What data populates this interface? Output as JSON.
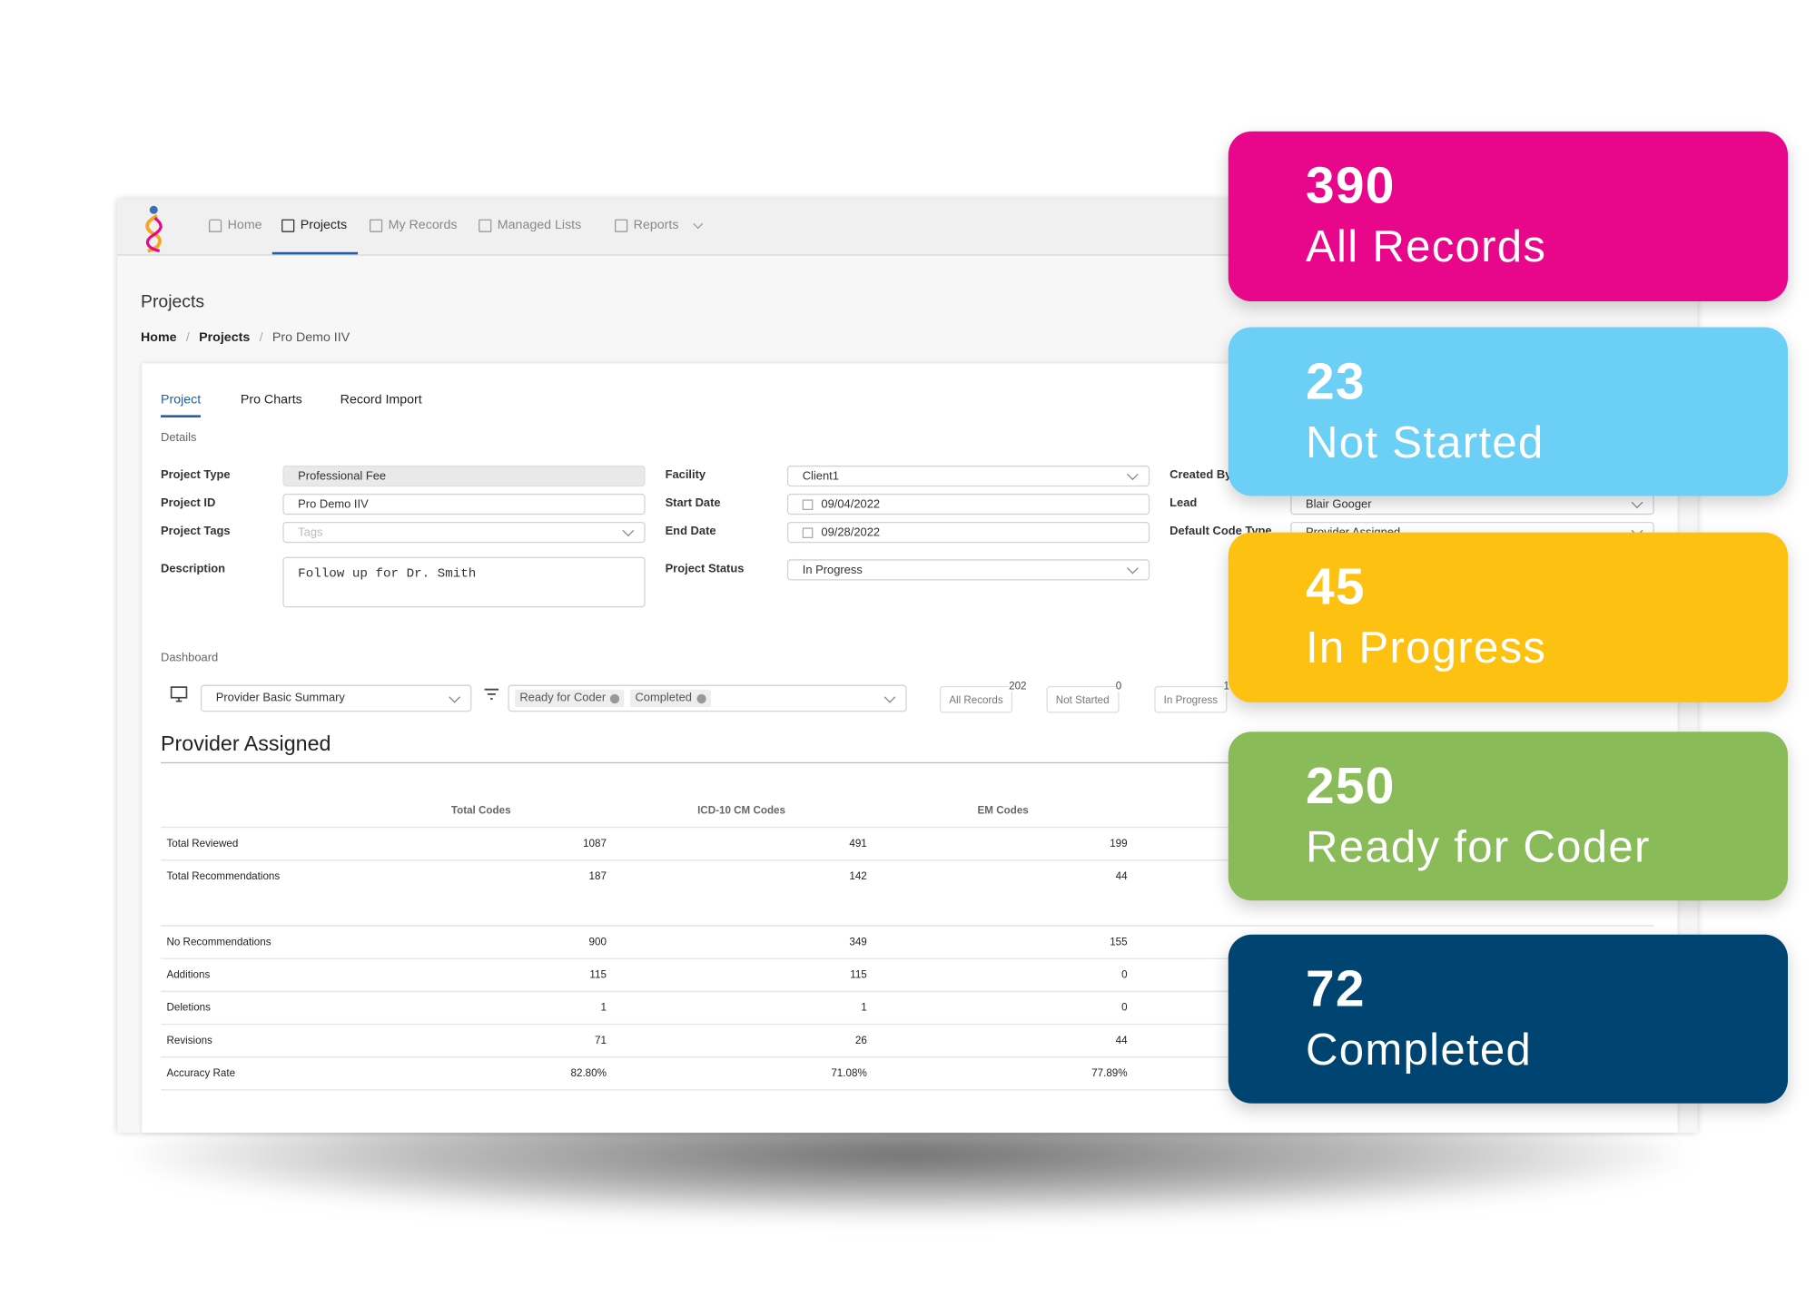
{
  "nav": {
    "items": [
      "Home",
      "Projects",
      "My Records",
      "Managed Lists",
      "Reports"
    ],
    "active": 1
  },
  "page": {
    "title": "Projects",
    "breadcrumb": [
      "Home",
      "Projects",
      "Pro Demo IIV"
    ]
  },
  "tabs": {
    "items": [
      "Project",
      "Pro Charts",
      "Record Import"
    ],
    "active": 0
  },
  "details": {
    "title": "Details",
    "columns": [
      [
        {
          "label": "Project Type",
          "value": "Professional Fee",
          "kind": "readonly"
        },
        {
          "label": "Project ID",
          "value": "Pro Demo IIV",
          "kind": "text"
        },
        {
          "label": "Project Tags",
          "placeholder": "Tags",
          "kind": "select"
        },
        {
          "label": "Description",
          "value": "Follow up for Dr. Smith",
          "kind": "textarea"
        }
      ],
      [
        {
          "label": "Facility",
          "value": "Client1",
          "kind": "select"
        },
        {
          "label": "Start Date",
          "value": "09/04/2022",
          "kind": "date"
        },
        {
          "label": "End Date",
          "value": "09/28/2022",
          "kind": "date"
        },
        {
          "label": "Project Status",
          "value": "In Progress",
          "kind": "select"
        }
      ],
      [
        {
          "label": "Created By",
          "kind": "text"
        },
        {
          "label": "Lead",
          "value": "Blair Googer",
          "kind": "select"
        },
        {
          "label": "Default Code Type",
          "value": "Provider Assigned",
          "kind": "select"
        }
      ]
    ]
  },
  "dashboard": {
    "title": "Dashboard",
    "view": "Provider Basic Summary",
    "filters": [
      "Ready for Coder",
      "Completed"
    ],
    "statuses": [
      {
        "label": "All Records",
        "count": 202
      },
      {
        "label": "Not Started",
        "count": 0
      },
      {
        "label": "In Progress",
        "count": 1
      }
    ]
  },
  "report": {
    "title": "Provider Assigned",
    "columns": [
      "Total Codes",
      "ICD-10 CM Codes",
      "EM Codes"
    ],
    "groups": [
      [
        [
          "Total Reviewed",
          "1087",
          "491",
          "199"
        ],
        [
          "Total Recommendations",
          "187",
          "142",
          "44"
        ]
      ],
      [
        [
          "No Recommendations",
          "900",
          "349",
          "155"
        ],
        [
          "Additions",
          "115",
          "115",
          "0"
        ],
        [
          "Deletions",
          "1",
          "1",
          "0"
        ],
        [
          "Revisions",
          "71",
          "26",
          "44"
        ],
        [
          "Accuracy Rate",
          "82.80%",
          "71.08%",
          "77.89%"
        ]
      ]
    ]
  },
  "cards": [
    {
      "count": 390,
      "label": "All Records",
      "color": "#e8078a"
    },
    {
      "count": 23,
      "label": "Not Started",
      "color": "#6ccff6"
    },
    {
      "count": 45,
      "label": "In Progress",
      "color": "#fcc111"
    },
    {
      "count": 250,
      "label": "Ready for Coder",
      "color": "#8abb59"
    },
    {
      "count": 72,
      "label": "Completed",
      "color": "#004471"
    }
  ]
}
